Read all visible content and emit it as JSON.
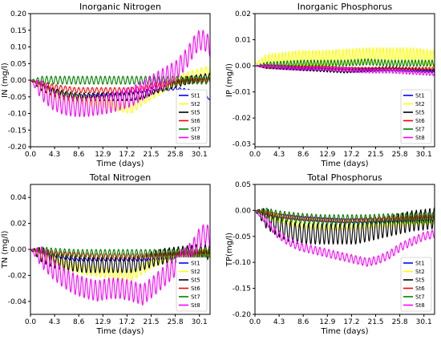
{
  "chart_data": [
    {
      "type": "line",
      "title": "Inorganic Nitrogen",
      "xlabel": "Time (days)",
      "ylabel": "IN (mg/l)",
      "xlim": [
        0,
        32
      ],
      "ylim": [
        -0.2,
        0.2
      ],
      "x_ticks": [
        "0.0",
        "4.3",
        "8.6",
        "12.9",
        "17.2",
        "21.5",
        "25.8",
        "30.1"
      ],
      "y_ticks": [
        "-0.20",
        "-0.15",
        "-0.10",
        "-0.05",
        "0.00",
        "0.05",
        "0.10",
        "0.15",
        "0.20"
      ],
      "legend": "lower-right",
      "series": [
        {
          "name": "St1",
          "color": "#0000ff",
          "x": [
            0,
            2,
            4,
            6,
            8,
            10,
            12,
            14,
            16,
            18,
            20,
            22,
            24,
            26,
            28,
            30,
            31,
            32
          ],
          "y": [
            0,
            -0.015,
            -0.03,
            -0.04,
            -0.045,
            -0.048,
            -0.045,
            -0.04,
            -0.04,
            -0.035,
            -0.035,
            -0.03,
            -0.028,
            -0.025,
            -0.03,
            -0.04,
            -0.05,
            -0.055
          ],
          "amp": 0.004,
          "period": 0.8
        },
        {
          "name": "St2",
          "color": "#ffff00",
          "x": [
            0,
            2,
            4,
            6,
            8,
            10,
            12,
            14,
            16,
            18,
            20,
            22,
            24,
            26,
            28,
            30,
            32
          ],
          "y": [
            0,
            -0.02,
            -0.04,
            -0.05,
            -0.055,
            -0.06,
            -0.065,
            -0.07,
            -0.08,
            -0.085,
            -0.06,
            -0.04,
            -0.02,
            0,
            0.01,
            0.02,
            0.03
          ],
          "amp": 0.015,
          "period": 0.8
        },
        {
          "name": "St5",
          "color": "#000000",
          "x": [
            0,
            2,
            4,
            6,
            8,
            10,
            12,
            14,
            16,
            18,
            20,
            22,
            24,
            26,
            28,
            30,
            32
          ],
          "y": [
            0,
            -0.02,
            -0.035,
            -0.045,
            -0.05,
            -0.05,
            -0.05,
            -0.05,
            -0.05,
            -0.05,
            -0.045,
            -0.03,
            -0.02,
            -0.01,
            0,
            0.005,
            0.01
          ],
          "amp": 0.012,
          "period": 0.8
        },
        {
          "name": "St6",
          "color": "#ff0000",
          "x": [
            0,
            2,
            4,
            6,
            8,
            10,
            12,
            14,
            16,
            18,
            20,
            22,
            24,
            26,
            28,
            30,
            32
          ],
          "y": [
            0,
            -0.01,
            -0.02,
            -0.025,
            -0.03,
            -0.03,
            -0.03,
            -0.03,
            -0.03,
            -0.03,
            -0.025,
            -0.015,
            -0.01,
            -0.005,
            0,
            0,
            0
          ],
          "amp": 0.008,
          "period": 0.8
        },
        {
          "name": "St7",
          "color": "#008000",
          "x": [
            0,
            4,
            8,
            12,
            16,
            20,
            24,
            28,
            32
          ],
          "y": [
            0,
            0,
            0,
            0,
            0,
            0,
            0,
            0,
            0
          ],
          "amp": 0.012,
          "period": 0.8
        },
        {
          "name": "St8",
          "color": "#ff00ff",
          "x": [
            0,
            2,
            4,
            6,
            8,
            10,
            12,
            14,
            16,
            18,
            20,
            22,
            24,
            26,
            27,
            28,
            29,
            30,
            31,
            32
          ],
          "y": [
            0,
            -0.03,
            -0.06,
            -0.075,
            -0.08,
            -0.08,
            -0.075,
            -0.07,
            -0.06,
            -0.05,
            -0.03,
            -0.01,
            0.01,
            0.03,
            0.05,
            0.07,
            0.1,
            0.12,
            0.12,
            0.1
          ],
          "amp": 0.03,
          "period": 0.8
        }
      ]
    },
    {
      "type": "line",
      "title": "Inorganic Phosphorus",
      "xlabel": "Time (days)",
      "ylabel": "IP (mg/l)",
      "xlim": [
        0,
        32
      ],
      "ylim": [
        -0.031,
        0.02
      ],
      "x_ticks": [
        "0.0",
        "4.3",
        "8.6",
        "12.9",
        "17.2",
        "21.5",
        "25.8",
        "30.1"
      ],
      "y_ticks": [
        "-0.03",
        "-0.02",
        "-0.01",
        "0.00",
        "0.01",
        "0.02"
      ],
      "legend": "lower-right",
      "series": [
        {
          "name": "St1",
          "color": "#0000ff",
          "x": [
            0,
            4,
            8,
            12,
            16,
            20,
            24,
            28,
            32
          ],
          "y": [
            0,
            -0.0005,
            -0.0008,
            -0.001,
            -0.0012,
            -0.0015,
            -0.0015,
            -0.0018,
            -0.002
          ],
          "amp": 0.0006,
          "period": 0.6
        },
        {
          "name": "St2",
          "color": "#ffff00",
          "x": [
            0,
            4,
            8,
            12,
            16,
            20,
            24,
            28,
            32
          ],
          "y": [
            0.001,
            0.002,
            0.003,
            0.003,
            0.0035,
            0.004,
            0.004,
            0.004,
            0.003
          ],
          "amp": 0.003,
          "period": 0.6
        },
        {
          "name": "St5",
          "color": "#000000",
          "x": [
            0,
            4,
            8,
            12,
            16,
            20,
            24,
            28,
            32
          ],
          "y": [
            0,
            -0.0005,
            -0.001,
            -0.0015,
            -0.002,
            -0.0015,
            -0.001,
            -0.0015,
            -0.002
          ],
          "amp": 0.0008,
          "period": 0.6
        },
        {
          "name": "St6",
          "color": "#ff0000",
          "x": [
            0,
            4,
            8,
            12,
            16,
            20,
            24,
            28,
            32
          ],
          "y": [
            0,
            0,
            -0.0005,
            -0.0005,
            -0.001,
            -0.001,
            -0.001,
            -0.001,
            -0.001
          ],
          "amp": 0.0005,
          "period": 0.6
        },
        {
          "name": "St7",
          "color": "#008000",
          "x": [
            0,
            4,
            8,
            12,
            16,
            20,
            24,
            28,
            32
          ],
          "y": [
            0,
            0.0005,
            0.001,
            0.001,
            0.001,
            0.0015,
            0.001,
            0.001,
            0.001
          ],
          "amp": 0.0012,
          "period": 0.6
        },
        {
          "name": "St8",
          "color": "#ff00ff",
          "x": [
            0,
            4,
            8,
            12,
            16,
            20,
            24,
            28,
            32
          ],
          "y": [
            0,
            -0.0005,
            -0.001,
            -0.001,
            -0.0015,
            -0.002,
            -0.002,
            -0.0025,
            -0.003
          ],
          "amp": 0.0008,
          "period": 0.6
        }
      ]
    },
    {
      "type": "line",
      "title": "Total Nitrogen",
      "xlabel": "Time (days)",
      "ylabel": "TN (mg/l)",
      "xlim": [
        0,
        32
      ],
      "ylim": [
        -0.05,
        0.05
      ],
      "x_ticks": [
        "0.0",
        "4.3",
        "8.6",
        "12.9",
        "17.2",
        "21.5",
        "25.8",
        "30.1"
      ],
      "y_ticks": [
        "-0.04",
        "-0.02",
        "0.00",
        "0.02",
        "0.04"
      ],
      "legend": "lower-right",
      "series": [
        {
          "name": "St1",
          "color": "#0000ff",
          "x": [
            0,
            4,
            8,
            12,
            16,
            20,
            24,
            28,
            32
          ],
          "y": [
            0,
            -0.005,
            -0.008,
            -0.008,
            -0.008,
            -0.008,
            -0.007,
            -0.006,
            -0.005
          ],
          "amp": 0.001,
          "period": 0.8
        },
        {
          "name": "St2",
          "color": "#ffff00",
          "x": [
            0,
            2,
            4,
            6,
            8,
            10,
            12,
            14,
            16,
            18,
            20,
            22,
            24,
            26,
            28,
            30,
            32
          ],
          "y": [
            0,
            -0.004,
            -0.008,
            -0.012,
            -0.014,
            -0.016,
            -0.017,
            -0.018,
            -0.02,
            -0.02,
            -0.015,
            -0.01,
            -0.007,
            -0.005,
            -0.004,
            -0.003,
            -0.003
          ],
          "amp": 0.004,
          "period": 0.8
        },
        {
          "name": "St5",
          "color": "#000000",
          "x": [
            0,
            2,
            4,
            6,
            8,
            10,
            12,
            14,
            16,
            18,
            20,
            22,
            24,
            26,
            28,
            30,
            32
          ],
          "y": [
            0,
            -0.004,
            -0.008,
            -0.01,
            -0.011,
            -0.012,
            -0.012,
            -0.012,
            -0.012,
            -0.012,
            -0.01,
            -0.007,
            -0.005,
            -0.004,
            -0.003,
            -0.002,
            -0.002
          ],
          "amp": 0.006,
          "period": 0.8
        },
        {
          "name": "St6",
          "color": "#ff0000",
          "x": [
            0,
            4,
            8,
            12,
            16,
            20,
            24,
            28,
            32
          ],
          "y": [
            0,
            -0.003,
            -0.004,
            -0.005,
            -0.005,
            -0.005,
            -0.004,
            -0.003,
            -0.002
          ],
          "amp": 0.002,
          "period": 0.8
        },
        {
          "name": "St7",
          "color": "#008000",
          "x": [
            0,
            4,
            8,
            12,
            16,
            20,
            24,
            28,
            32
          ],
          "y": [
            0,
            -0.002,
            -0.003,
            -0.003,
            -0.003,
            -0.003,
            -0.003,
            -0.003,
            -0.003
          ],
          "amp": 0.003,
          "period": 0.8
        },
        {
          "name": "St8",
          "color": "#ff00ff",
          "x": [
            0,
            2,
            4,
            6,
            8,
            10,
            12,
            14,
            16,
            18,
            20,
            22,
            24,
            26,
            28,
            29,
            30,
            31,
            32
          ],
          "y": [
            0,
            -0.006,
            -0.015,
            -0.022,
            -0.027,
            -0.03,
            -0.032,
            -0.03,
            -0.03,
            -0.032,
            -0.035,
            -0.028,
            -0.02,
            -0.012,
            -0.005,
            0.0,
            0.008,
            0.012,
            0.01
          ],
          "amp": 0.008,
          "period": 0.8
        }
      ]
    },
    {
      "type": "line",
      "title": "Total Phosphorus",
      "xlabel": "Time (days)",
      "ylabel": "TP(mg/l)",
      "xlim": [
        0,
        32
      ],
      "ylim": [
        -0.2,
        0.05
      ],
      "x_ticks": [
        "0.0",
        "4.3",
        "8.6",
        "12.9",
        "17.2",
        "21.5",
        "25.8",
        "30.1"
      ],
      "y_ticks": [
        "-0.20",
        "-0.15",
        "-0.10",
        "-0.05",
        "0.00",
        "0.05"
      ],
      "legend": "lower-right",
      "series": [
        {
          "name": "St1",
          "color": "#0000ff",
          "x": [
            0,
            4,
            8,
            12,
            16,
            20,
            24,
            28,
            32
          ],
          "y": [
            0,
            -0.01,
            -0.015,
            -0.018,
            -0.02,
            -0.02,
            -0.02,
            -0.02,
            -0.02
          ],
          "amp": 0.004,
          "period": 0.8
        },
        {
          "name": "St2",
          "color": "#ffff00",
          "x": [
            0,
            4,
            8,
            12,
            16,
            20,
            24,
            28,
            32
          ],
          "y": [
            0,
            -0.015,
            -0.025,
            -0.03,
            -0.03,
            -0.028,
            -0.025,
            -0.022,
            -0.02
          ],
          "amp": 0.008,
          "period": 0.8
        },
        {
          "name": "St5",
          "color": "#000000",
          "x": [
            0,
            2,
            4,
            6,
            8,
            10,
            12,
            14,
            16,
            18,
            20,
            22,
            24,
            26,
            28,
            30,
            32
          ],
          "y": [
            0,
            -0.015,
            -0.03,
            -0.04,
            -0.045,
            -0.045,
            -0.045,
            -0.045,
            -0.045,
            -0.045,
            -0.04,
            -0.035,
            -0.03,
            -0.025,
            -0.02,
            -0.018,
            -0.015
          ],
          "amp": 0.02,
          "period": 0.8
        },
        {
          "name": "St6",
          "color": "#ff0000",
          "x": [
            0,
            4,
            8,
            12,
            16,
            20,
            24,
            28,
            32
          ],
          "y": [
            0,
            -0.01,
            -0.015,
            -0.018,
            -0.02,
            -0.018,
            -0.016,
            -0.014,
            -0.012
          ],
          "amp": 0.005,
          "period": 0.8
        },
        {
          "name": "St7",
          "color": "#008000",
          "x": [
            0,
            4,
            8,
            12,
            16,
            20,
            24,
            28,
            32
          ],
          "y": [
            0,
            -0.01,
            -0.015,
            -0.018,
            -0.018,
            -0.018,
            -0.016,
            -0.015,
            -0.014
          ],
          "amp": 0.01,
          "period": 0.8
        },
        {
          "name": "St8",
          "color": "#ff00ff",
          "x": [
            0,
            2,
            4,
            6,
            8,
            10,
            12,
            14,
            16,
            18,
            20,
            22,
            24,
            26,
            28,
            30,
            32
          ],
          "y": [
            0,
            -0.02,
            -0.045,
            -0.06,
            -0.07,
            -0.075,
            -0.08,
            -0.085,
            -0.09,
            -0.095,
            -0.1,
            -0.095,
            -0.085,
            -0.07,
            -0.06,
            -0.05,
            -0.045
          ],
          "amp": 0.008,
          "period": 0.8
        }
      ]
    }
  ]
}
